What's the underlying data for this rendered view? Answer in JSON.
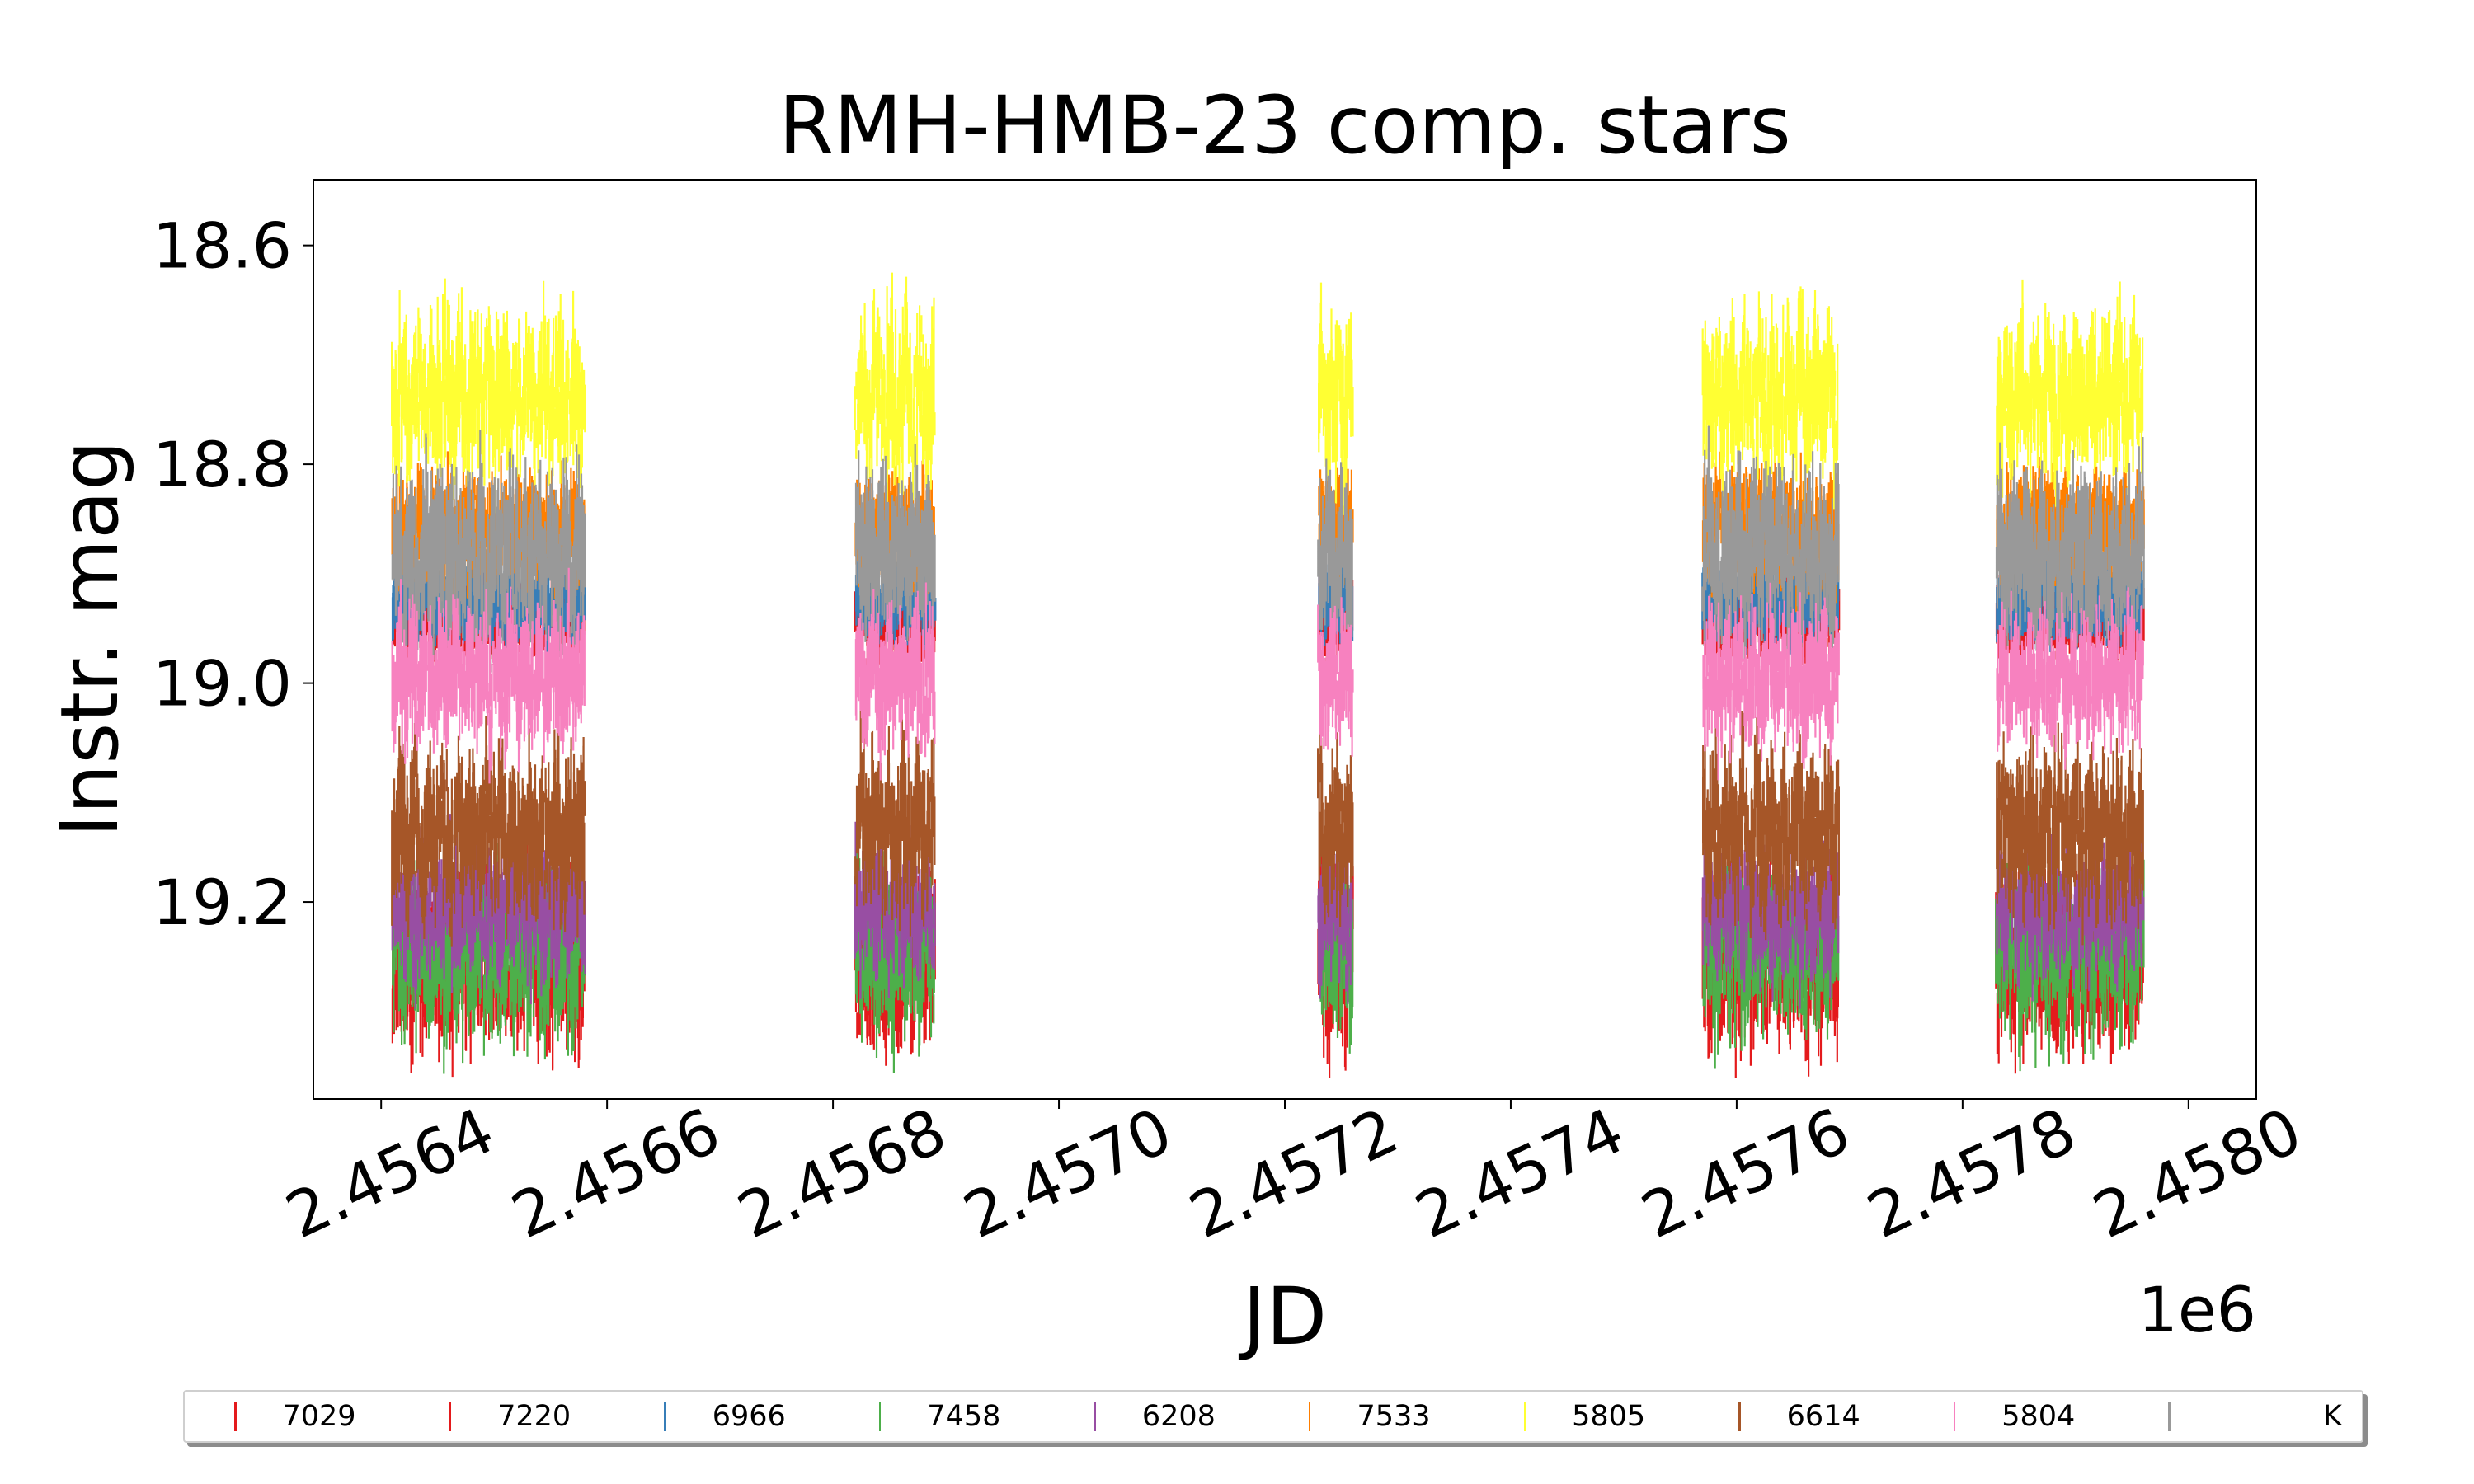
{
  "chart_data": {
    "type": "scatter",
    "title": "RMH-HMB-23 comp. stars",
    "xlabel": "JD",
    "ylabel": "Instr. mag",
    "x_offset_label": "1e6",
    "xlim": [
      2.45634,
      2.45806
    ],
    "ylim": [
      18.54,
      19.38
    ],
    "y_inverted": true,
    "x_ticks": [
      2.4564,
      2.4566,
      2.4568,
      2.457,
      2.4572,
      2.4574,
      2.4576,
      2.4578,
      2.458
    ],
    "x_tick_labels": [
      "2.4564",
      "2.4566",
      "2.4568",
      "2.4570",
      "2.4572",
      "2.4574",
      "2.4576",
      "2.4578",
      "2.4580"
    ],
    "y_ticks": [
      18.6,
      18.8,
      19.0,
      19.2
    ],
    "y_tick_labels": [
      "18.6",
      "18.8",
      "19.0",
      "19.2"
    ],
    "grid": false,
    "legend_placement": "bottom",
    "segments": [
      {
        "x_start": 2.45641,
        "x_end": 2.45658
      },
      {
        "x_start": 2.45682,
        "x_end": 2.45689
      },
      {
        "x_start": 2.45723,
        "x_end": 2.45726
      },
      {
        "x_start": 2.45757,
        "x_end": 2.45769
      },
      {
        "x_start": 2.45783,
        "x_end": 2.45796
      }
    ],
    "series": [
      {
        "name": "7029",
        "color": "#e41a1c",
        "mean_mag": 19.255,
        "spread": 0.05
      },
      {
        "name": "7220",
        "color": "#e41a1c",
        "mean_mag": 18.94,
        "spread": 0.02
      },
      {
        "name": "6966",
        "color": "#377eb8",
        "mean_mag": 18.925,
        "spread": 0.02
      },
      {
        "name": "7458",
        "color": "#4daf4a",
        "mean_mag": 19.245,
        "spread": 0.05
      },
      {
        "name": "6208",
        "color": "#984ea3",
        "mean_mag": 19.205,
        "spread": 0.04
      },
      {
        "name": "7533",
        "color": "#ff7f00",
        "mean_mag": 18.86,
        "spread": 0.03
      },
      {
        "name": "5805",
        "color": "#ffff33",
        "mean_mag": 18.74,
        "spread": 0.05
      },
      {
        "name": "6614",
        "color": "#a65628",
        "mean_mag": 19.135,
        "spread": 0.05
      },
      {
        "name": "5804",
        "color": "#f781bf",
        "mean_mag": 18.995,
        "spread": 0.04
      },
      {
        "name": "K",
        "color": "#999999",
        "mean_mag": 18.885,
        "spread": 0.05
      }
    ]
  }
}
